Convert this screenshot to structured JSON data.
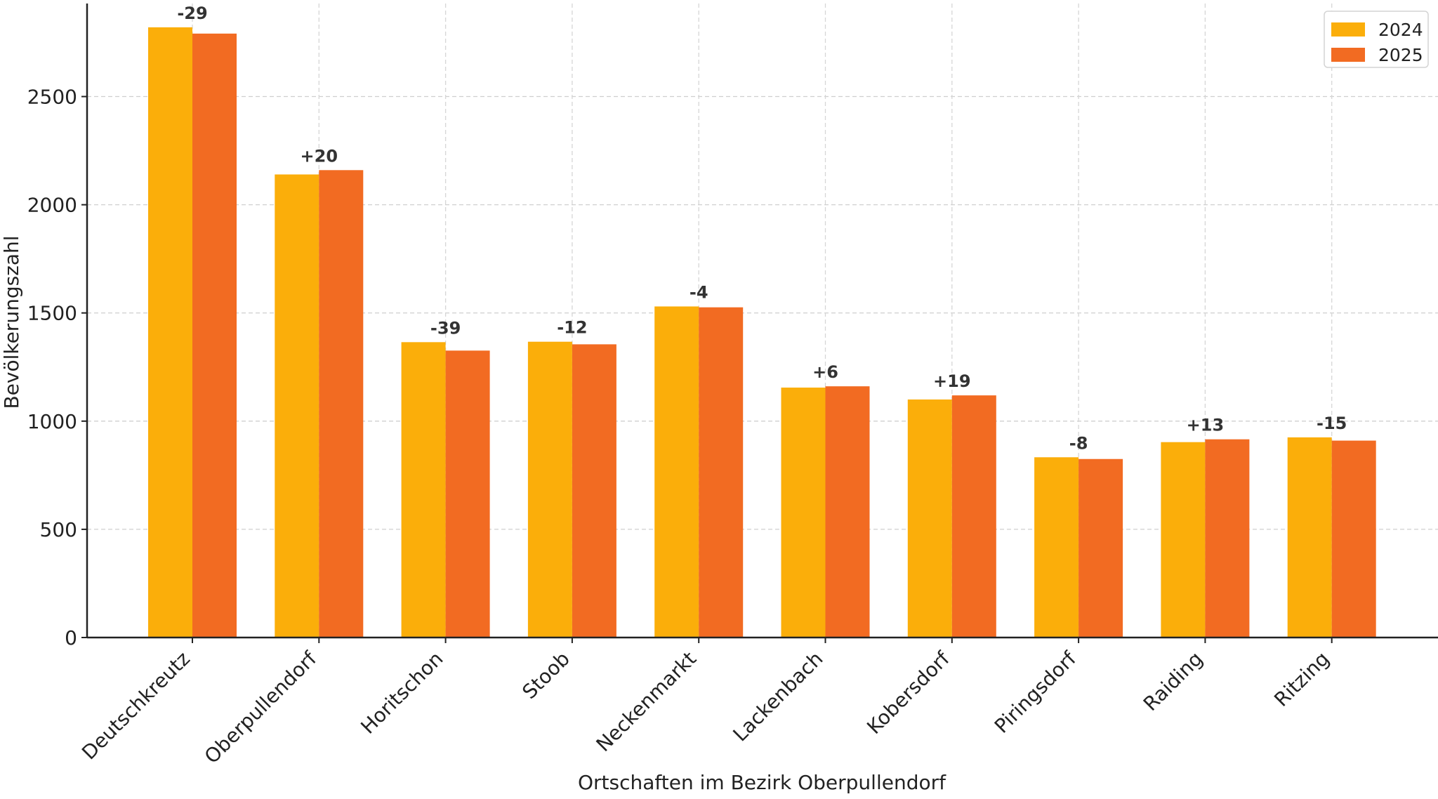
{
  "chart_data": {
    "type": "bar",
    "title": "",
    "xlabel": "Ortschaften im Bezirk Oberpullendorf",
    "ylabel": "Bevölkerungszahl",
    "ylim": [
      0,
      2930
    ],
    "yticks": [
      0,
      500,
      1000,
      1500,
      2000,
      2500
    ],
    "grid": true,
    "legend_position": "top-right",
    "categories": [
      "Deutschkreutz",
      "Oberpullendorf",
      "Horitschon",
      "Stoob",
      "Neckenmarkt",
      "Lackenbach",
      "Kobersdorf",
      "Piringsdorf",
      "Raiding",
      "Ritzing"
    ],
    "series": [
      {
        "name": "2024",
        "color": "#FBAE0A",
        "values": [
          2820,
          2140,
          1365,
          1367,
          1530,
          1155,
          1100,
          833,
          903,
          925
        ]
      },
      {
        "name": "2025",
        "color": "#F26B22",
        "values": [
          2791,
          2160,
          1326,
          1355,
          1526,
          1161,
          1119,
          825,
          916,
          910
        ]
      }
    ],
    "annotations": [
      "-29",
      "+20",
      "-39",
      "-12",
      "-4",
      "+6",
      "+19",
      "-8",
      "+13",
      "-15"
    ]
  }
}
